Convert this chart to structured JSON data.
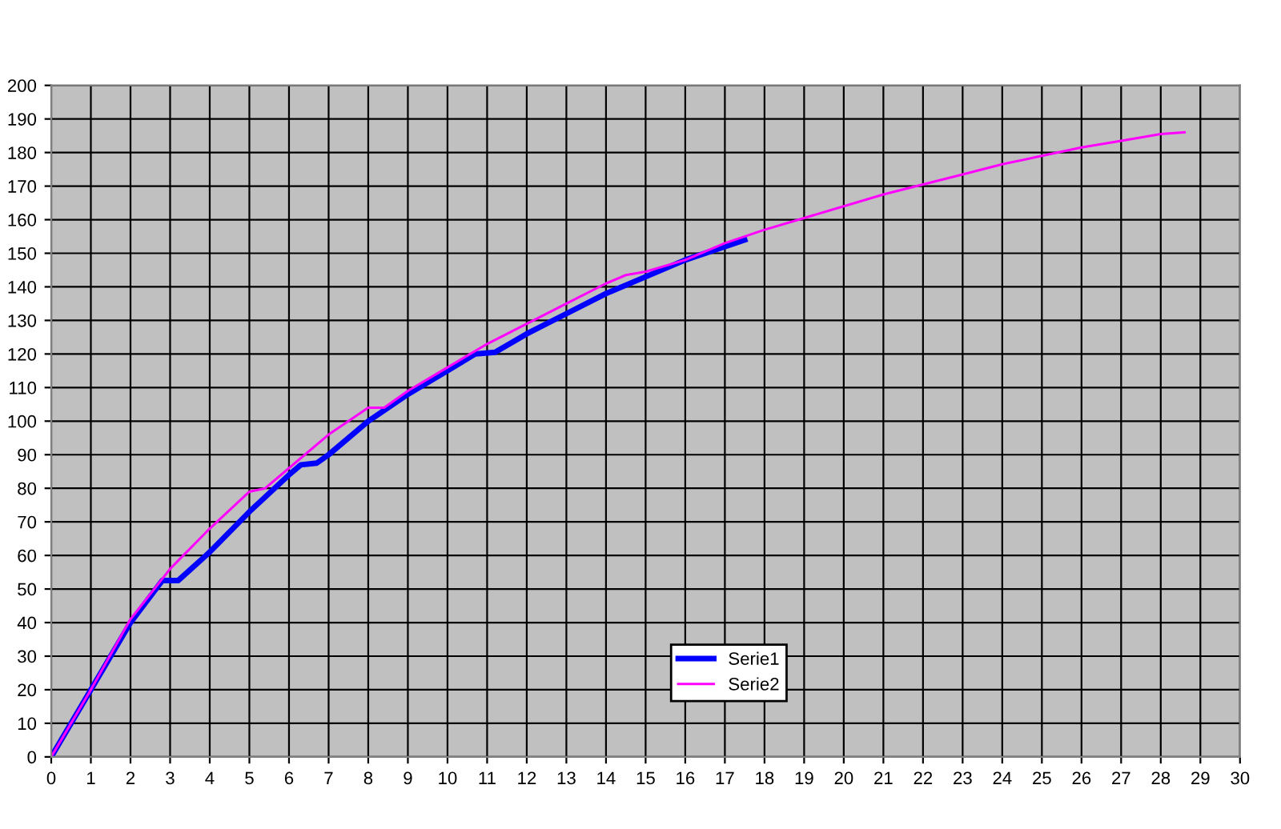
{
  "chart_data": {
    "type": "line",
    "xlim": [
      0,
      30
    ],
    "xticks": [
      0,
      1,
      2,
      3,
      4,
      5,
      6,
      7,
      8,
      9,
      10,
      11,
      12,
      13,
      14,
      15,
      16,
      17,
      18,
      19,
      20,
      21,
      22,
      23,
      24,
      25,
      26,
      27,
      28,
      29,
      30
    ],
    "ylim": [
      0,
      200
    ],
    "yticks": [
      0,
      10,
      20,
      30,
      40,
      50,
      60,
      70,
      80,
      90,
      100,
      110,
      120,
      130,
      140,
      150,
      160,
      170,
      180,
      190,
      200
    ],
    "grid": true,
    "legend": "bottom",
    "marker": "none",
    "line_style": "solid",
    "series": [
      {
        "name": "Serie1",
        "color": "#0000ff",
        "x": [
          0,
          1,
          2,
          2.8,
          3.2,
          4,
          5,
          6,
          6.3,
          6.7,
          7,
          8,
          9,
          10,
          10.7,
          11.2,
          12,
          13,
          14,
          15,
          16,
          17,
          17.5
        ],
        "values": [
          0,
          20,
          40,
          52.5,
          52.5,
          61,
          73,
          84,
          87,
          87.5,
          90,
          100,
          108,
          115,
          120,
          120.5,
          126,
          132,
          138,
          143,
          148,
          152,
          154
        ]
      },
      {
        "name": "Serie2",
        "color": "#ff00ff",
        "x": [
          0,
          1,
          2,
          3,
          4,
          5,
          5.4,
          6,
          7,
          8,
          8.4,
          9,
          10,
          11,
          12,
          13,
          14,
          14.5,
          15,
          16,
          17,
          18,
          19,
          20,
          21,
          22,
          23,
          24,
          25,
          26,
          27,
          28,
          28.6
        ],
        "values": [
          0,
          20,
          41,
          56,
          68,
          79,
          80,
          86,
          96,
          104,
          104,
          109,
          116,
          123,
          129,
          135,
          141,
          143.5,
          144.5,
          148,
          153,
          157,
          160.5,
          164,
          167.5,
          170.5,
          173.5,
          176.5,
          179,
          181.5,
          183.5,
          185.5,
          186
        ]
      }
    ]
  }
}
